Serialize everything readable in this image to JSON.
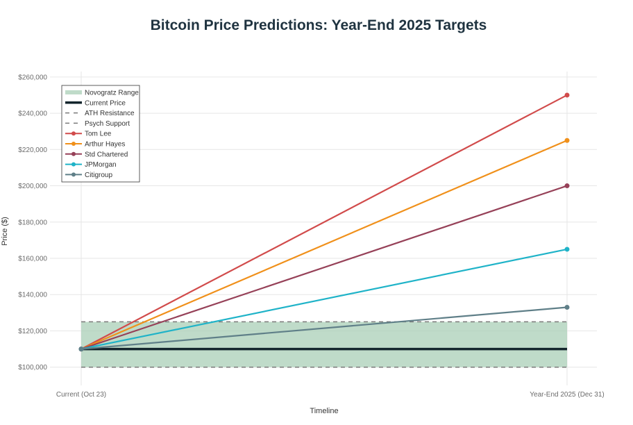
{
  "chart_data": {
    "type": "line",
    "title": "Bitcoin Price Predictions: Year-End 2025 Targets",
    "xlabel": "Timeline",
    "ylabel": "Price ($)",
    "categories": [
      "Current (Oct 23)",
      "Year-End 2025 (Dec 31)"
    ],
    "ylim": [
      93000,
      263000
    ],
    "yticks": [
      100000,
      120000,
      140000,
      160000,
      180000,
      200000,
      220000,
      240000,
      260000
    ],
    "ytick_labels": [
      "$100,000",
      "$120,000",
      "$140,000",
      "$160,000",
      "$180,000",
      "$200,000",
      "$220,000",
      "$240,000",
      "$260,000"
    ],
    "grid": true,
    "legend_placement": "top-left",
    "bands": [
      {
        "name": "Novogratz Range",
        "range": [
          100000,
          125000
        ],
        "color": "#a9cfb7"
      }
    ],
    "hlines": [
      {
        "name": "Current Price",
        "value": 110000,
        "color": "#13252c",
        "style": "solid"
      },
      {
        "name": "ATH Resistance",
        "value": 125000,
        "color": "#7a7a7a",
        "style": "dashed"
      },
      {
        "name": "Psych Support",
        "value": 100000,
        "color": "#7a7a7a",
        "style": "dashed"
      }
    ],
    "series": [
      {
        "name": "Tom Lee",
        "values": [
          110000,
          250000
        ],
        "color": "#d14b4b"
      },
      {
        "name": "Arthur Hayes",
        "values": [
          110000,
          225000
        ],
        "color": "#f0901a"
      },
      {
        "name": "Std Chartered",
        "values": [
          110000,
          200000
        ],
        "color": "#964158"
      },
      {
        "name": "JPMorgan",
        "values": [
          110000,
          165000
        ],
        "color": "#1fb3c8"
      },
      {
        "name": "Citigroup",
        "values": [
          110000,
          133000
        ],
        "color": "#5f7f88"
      }
    ]
  }
}
